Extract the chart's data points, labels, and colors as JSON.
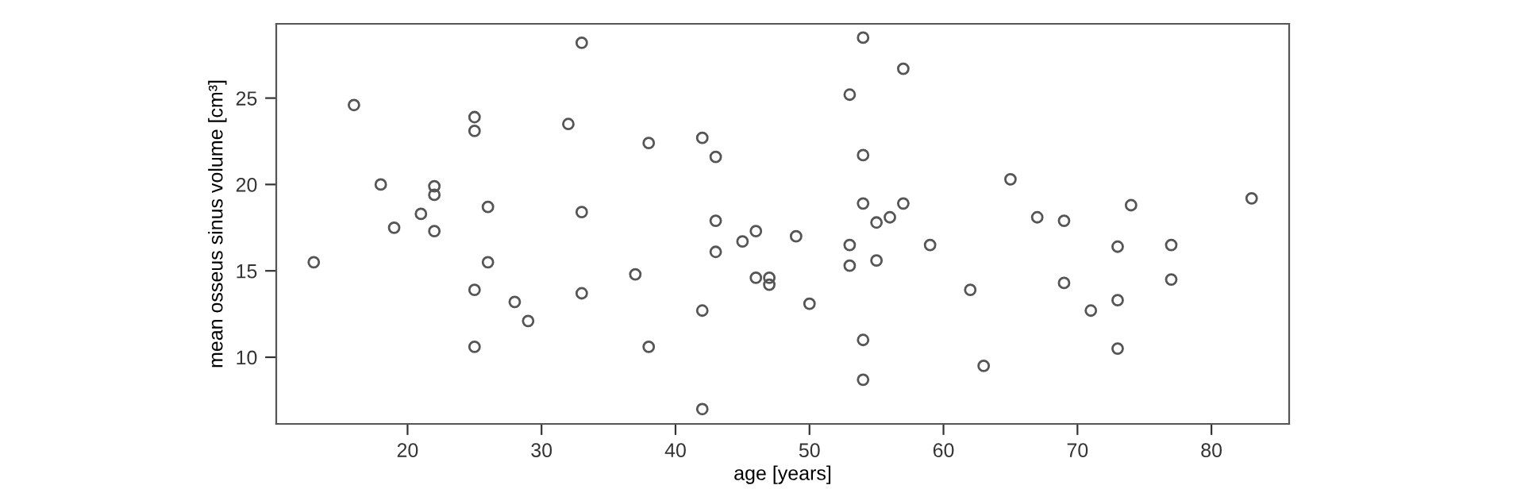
{
  "chart_data": {
    "type": "scatter",
    "xlabel": "age [years]",
    "ylabel": "mean osseus sinus volume [cm³]",
    "xlim": [
      10.2,
      85.8
    ],
    "ylim": [
      6.14,
      29.3
    ],
    "xticks": [
      20,
      30,
      40,
      50,
      60,
      70,
      80
    ],
    "yticks": [
      10,
      15,
      20,
      25
    ],
    "grid": false,
    "marker": "circle",
    "series": [
      {
        "color": "#555555",
        "x": [
          13,
          16,
          18,
          19,
          21,
          22,
          22,
          22,
          25,
          25,
          25,
          25,
          26,
          26,
          28,
          29,
          32,
          33,
          33,
          33,
          37,
          38,
          38,
          42,
          42,
          42,
          43,
          43,
          43,
          45,
          46,
          46,
          47,
          47,
          49,
          50,
          53,
          53,
          53,
          54,
          54,
          54,
          54,
          54,
          55,
          55,
          56,
          57,
          57,
          59,
          62,
          63,
          65,
          67,
          69,
          69,
          71,
          73,
          73,
          73,
          74,
          77,
          77,
          83
        ],
        "values": [
          15.5,
          24.6,
          20.0,
          17.5,
          18.3,
          19.9,
          19.4,
          17.3,
          23.9,
          23.1,
          13.9,
          10.6,
          18.7,
          15.5,
          13.2,
          12.1,
          23.5,
          28.2,
          18.4,
          13.7,
          14.8,
          22.4,
          10.6,
          22.7,
          12.7,
          7.0,
          21.6,
          17.9,
          16.1,
          16.7,
          17.3,
          14.6,
          14.6,
          14.2,
          17.0,
          13.1,
          25.2,
          16.5,
          15.3,
          28.5,
          21.7,
          18.9,
          11.0,
          8.7,
          17.8,
          15.6,
          18.1,
          26.7,
          18.9,
          16.5,
          13.9,
          9.5,
          20.3,
          18.1,
          17.9,
          14.3,
          12.7,
          16.4,
          13.3,
          10.5,
          18.8,
          16.5,
          14.5,
          19.2
        ]
      }
    ]
  }
}
